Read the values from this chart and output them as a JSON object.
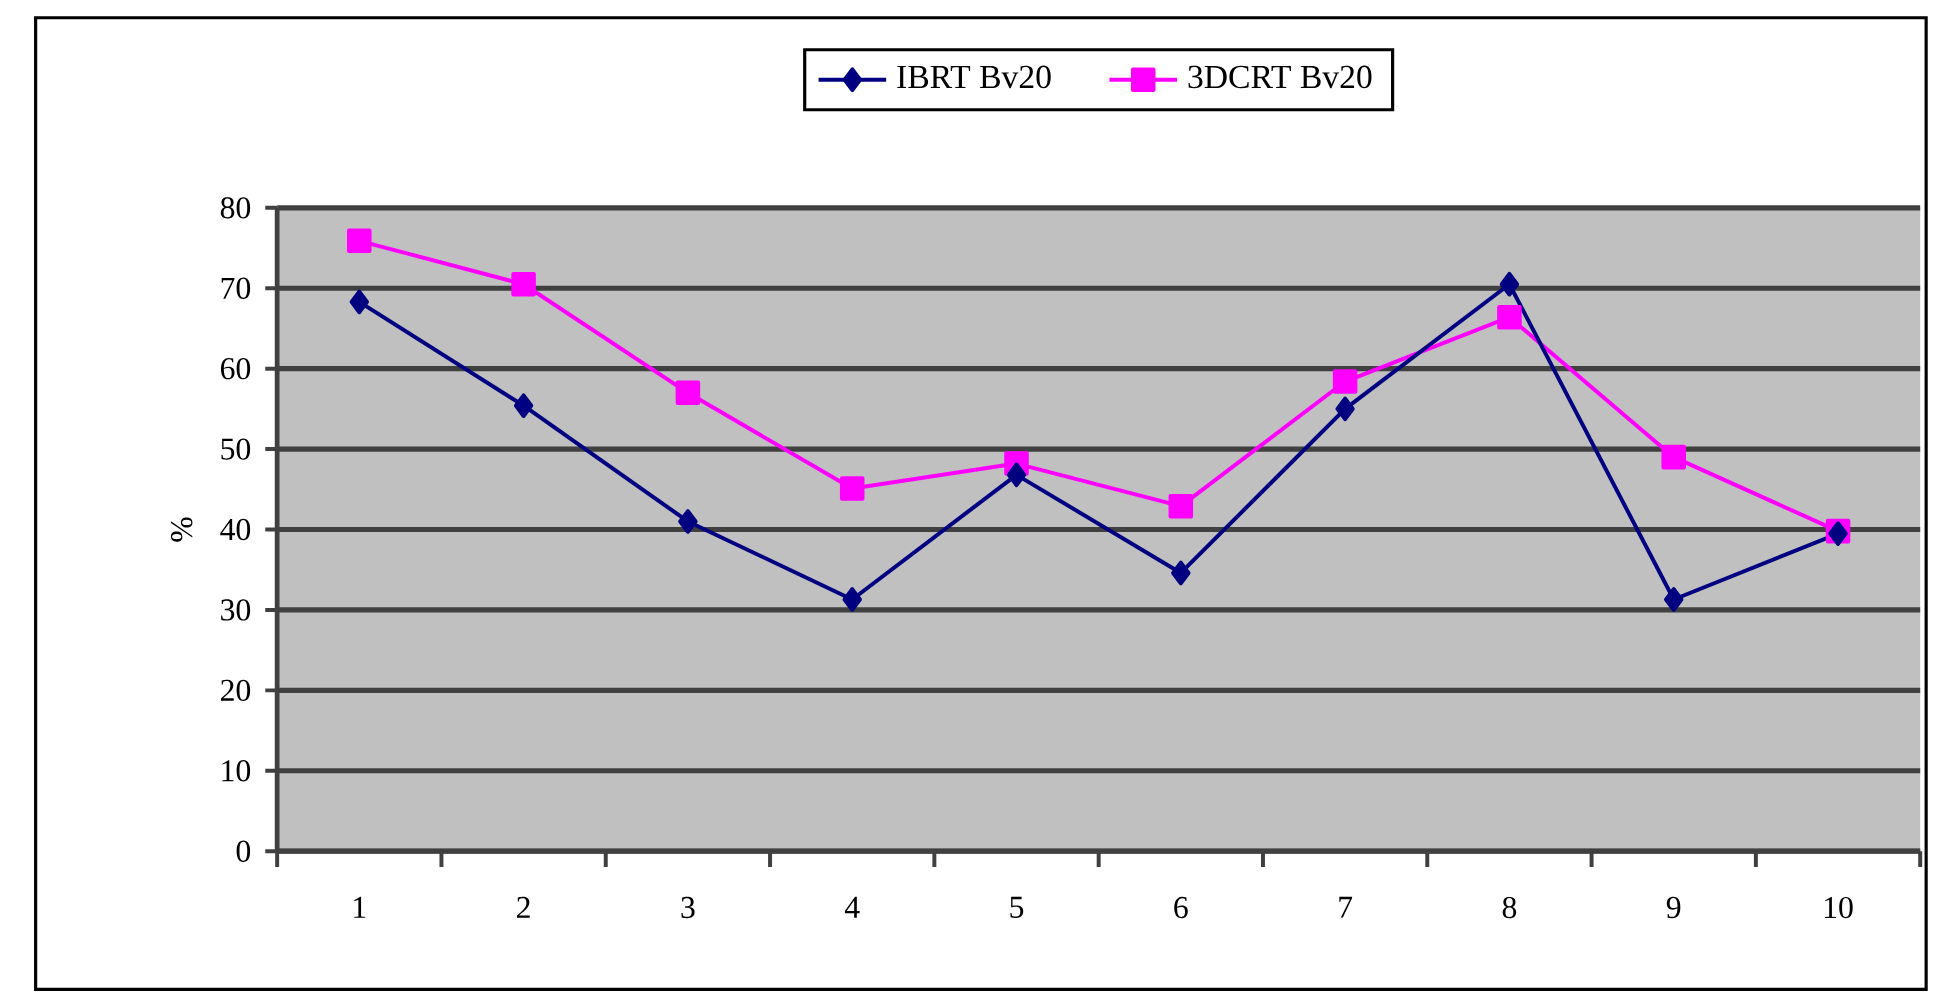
{
  "chart_data": {
    "type": "line",
    "ylabel": "%",
    "categories": [
      "1",
      "2",
      "3",
      "4",
      "5",
      "6",
      "7",
      "8",
      "9",
      "10"
    ],
    "series": [
      {
        "name": "IBRT Bv20",
        "color": "#000080",
        "marker": "diamond",
        "values": [
          68.3,
          55.4,
          41.0,
          31.3,
          46.8,
          34.6,
          55.0,
          70.5,
          31.3,
          39.5
        ]
      },
      {
        "name": "3DCRT Bv20",
        "color": "#ff00ff",
        "marker": "square",
        "values": [
          75.9,
          70.5,
          57.0,
          45.1,
          48.2,
          42.9,
          58.4,
          66.4,
          49.0,
          39.8
        ]
      }
    ],
    "ylim": [
      0,
      80
    ],
    "yticks": [
      0,
      10,
      20,
      30,
      40,
      50,
      60,
      70,
      80
    ],
    "grid": "y",
    "legend": "top",
    "line_style": "solid"
  }
}
